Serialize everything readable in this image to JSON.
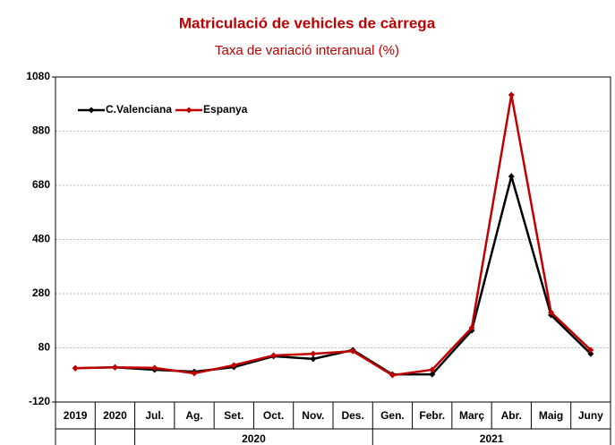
{
  "chart_data": {
    "type": "line",
    "title": "Matriculació de vehicles de càrrega",
    "subtitle": "Taxa de variació interanual (%)",
    "categories": [
      "2019",
      "2020",
      "Jul.",
      "Ag.",
      "Set.",
      "Oct.",
      "Nov.",
      "Des.",
      "Gen.",
      "Febr.",
      "Març",
      "Abr.",
      "Maig",
      "Juny"
    ],
    "groups": [
      "2020",
      "2021"
    ],
    "series": [
      {
        "name": "C.Valenciana",
        "color": "#000000",
        "values": [
          5,
          8,
          -1,
          -8,
          9,
          49,
          39,
          72,
          -18,
          -18,
          144,
          713,
          201,
          58
        ]
      },
      {
        "name": "Espanya",
        "color": "#c00000",
        "values": [
          5,
          8,
          6,
          -14,
          16,
          52,
          58,
          68,
          -21,
          -1,
          154,
          1014,
          211,
          72
        ]
      }
    ],
    "ylim": [
      -120,
      1080
    ],
    "yticks": [
      -120,
      80,
      280,
      480,
      680,
      880,
      1080
    ],
    "grid": true,
    "legend": "top-left"
  }
}
